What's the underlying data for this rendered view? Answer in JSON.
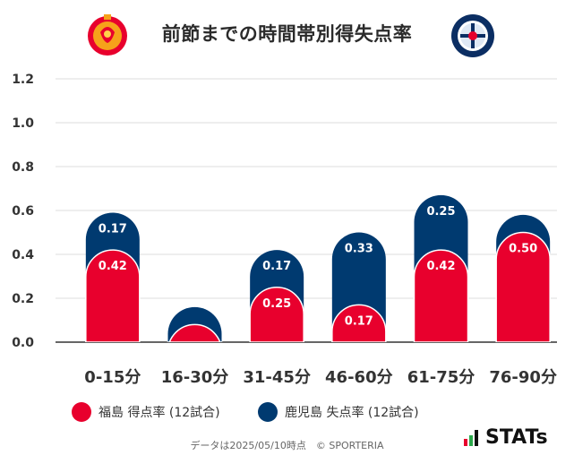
{
  "header": {
    "title": "前節までの時間帯別得失点率",
    "left_team_logo_text": "FUKUSHIMA UNITED FC",
    "right_team_logo_text": "KAGOSHIMA UNITED FC"
  },
  "colors": {
    "fukushima": "#e8002d",
    "kagoshima": "#003a70",
    "grid": "#dddddd",
    "axis": "#333333"
  },
  "chart_data": {
    "type": "bar",
    "stacked": true,
    "categories": [
      "0-15分",
      "16-30分",
      "31-45分",
      "46-60分",
      "61-75分",
      "76-90分"
    ],
    "series": [
      {
        "name": "福島 得点率 (12試合)",
        "values": [
          0.42,
          0.08,
          0.25,
          0.17,
          0.42,
          0.5
        ],
        "labels": [
          "0.42",
          "",
          "0.25",
          "0.17",
          "0.42",
          "0.50"
        ]
      },
      {
        "name": "鹿児島 失点率 (12試合)",
        "values": [
          0.17,
          0.08,
          0.17,
          0.33,
          0.25,
          0.08
        ],
        "labels": [
          "0.17",
          "",
          "0.17",
          "0.33",
          "0.25",
          ""
        ]
      }
    ],
    "yticks": [
      "0.0",
      "0.2",
      "0.4",
      "0.6",
      "0.8",
      "1.0",
      "1.2"
    ],
    "ylim": [
      0,
      1.2
    ],
    "grid": true,
    "legend_position": "bottom-left"
  },
  "legend": {
    "item1": "福島 得点率 (12試合)",
    "item2": "鹿児島 失点率 (12試合)"
  },
  "footer": {
    "note": "データは2025/05/10時点　© SPORTERIA",
    "brand": "STATs"
  }
}
